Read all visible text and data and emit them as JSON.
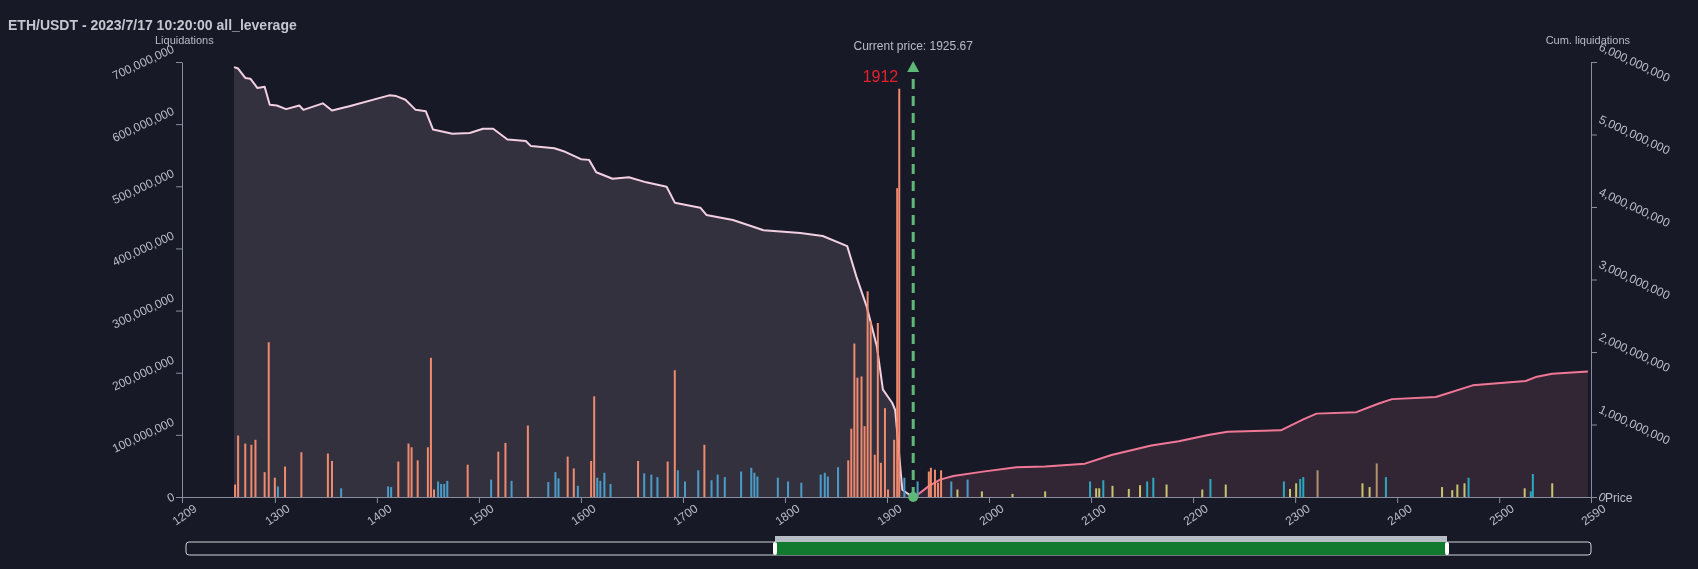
{
  "chart_data": {
    "type": "bar",
    "title": "ETH/USDT - 2023/7/17 10:20:00 all_leverage",
    "xlabel": "Price",
    "ylabel": "Liquidations",
    "y2label": "Cum. liquidations",
    "xlim": [
      1209,
      2590
    ],
    "xticks": [
      1209,
      1300,
      1400,
      1500,
      1600,
      1700,
      1800,
      1900,
      2000,
      2100,
      2200,
      2300,
      2400,
      2500,
      2590
    ],
    "ylim": [
      0,
      700000000
    ],
    "yticks": [
      0,
      {
        "value": 100000000,
        "label": "100,000,000"
      },
      {
        "value": 200000000,
        "label": "200,000,000"
      },
      {
        "value": 300000000,
        "label": "300,000,000"
      },
      {
        "value": 400000000,
        "label": "400,000,000"
      },
      {
        "value": 500000000,
        "label": "500,000,000"
      },
      {
        "value": 600000000,
        "label": "600,000,000"
      },
      {
        "value": 700000000,
        "label": "700,000,000"
      }
    ],
    "y2lim": [
      0,
      6000000000
    ],
    "y2ticks": [
      0,
      {
        "value": 1000000000,
        "label": "1,000,000,000"
      },
      {
        "value": 2000000000,
        "label": "2,000,000,000"
      },
      {
        "value": 3000000000,
        "label": "3,000,000,000"
      },
      {
        "value": 4000000000,
        "label": "4,000,000,000"
      },
      {
        "value": 5000000000,
        "label": "5,000,000,000"
      },
      {
        "value": 6000000000,
        "label": "6,000,000,000"
      }
    ],
    "grid": false,
    "series": [
      {
        "x": [
          1261,
          1264,
          1271,
          1277,
          1281,
          1290,
          1294,
          1300,
          1303,
          1310,
          1326,
          1352,
          1356,
          1365,
          1411,
          1414,
          1421,
          1431,
          1434,
          1440,
          1450,
          1453,
          1456,
          1460,
          1463,
          1466,
          1469,
          1489,
          1512,
          1519,
          1526,
          1532,
          1548,
          1568,
          1575,
          1578,
          1587,
          1593,
          1597,
          1610,
          1613,
          1616,
          1619,
          1623,
          1629,
          1656,
          1662,
          1669,
          1675,
          1685,
          1692,
          1695,
          1702,
          1715,
          1721,
          1728,
          1734,
          1741,
          1757,
          1767,
          1770,
          1773,
          1793,
          1803,
          1816,
          1835,
          1839,
          1842,
          1852,
          1862,
          1865,
          1868,
          1871,
          1875,
          1878,
          1881,
          1884,
          1888,
          1891,
          1894,
          1898,
          1901,
          1907,
          1910,
          1912,
          1917,
          1930,
          1941,
          1943,
          1947,
          1950,
          1953,
          1963,
          1969,
          1979,
          1993,
          2023,
          2055,
          2099,
          2105,
          2108,
          2112,
          2121,
          2137,
          2148,
          2155,
          2161,
          2174,
          2209,
          2217,
          2232,
          2289,
          2295,
          2301,
          2305,
          2308,
          2322,
          2366,
          2373,
          2380,
          2389,
          2444,
          2454,
          2459,
          2466,
          2470,
          2525,
          2531,
          2533,
          2552
        ],
        "values": [
          20000000,
          99000000,
          86000000,
          84000000,
          92000000,
          40000000,
          249000000,
          31000000,
          17000000,
          49000000,
          72000000,
          70000000,
          58000000,
          14000000,
          17000000,
          16000000,
          57000000,
          86000000,
          80000000,
          59000000,
          80000000,
          224000000,
          12000000,
          25000000,
          21000000,
          21000000,
          26000000,
          52000000,
          28000000,
          73000000,
          87000000,
          26000000,
          115000000,
          24000000,
          40000000,
          30000000,
          65000000,
          46000000,
          18000000,
          58000000,
          162000000,
          31000000,
          26000000,
          39000000,
          21000000,
          58000000,
          38000000,
          36000000,
          32000000,
          57000000,
          204000000,
          43000000,
          25000000,
          43000000,
          84000000,
          27000000,
          36000000,
          32000000,
          41000000,
          47000000,
          39000000,
          33000000,
          31000000,
          25000000,
          23000000,
          36000000,
          39000000,
          33000000,
          48000000,
          59000000,
          110000000,
          247000000,
          192000000,
          194000000,
          114000000,
          331000000,
          283000000,
          68000000,
          280000000,
          55000000,
          143000000,
          12000000,
          92000000,
          497000000,
          657000000,
          31000000,
          25000000,
          41000000,
          47000000,
          44000000,
          23000000,
          43000000,
          25000000,
          12000000,
          28000000,
          9000000,
          5000000,
          9000000,
          25000000,
          14000000,
          14000000,
          27000000,
          18000000,
          13000000,
          19000000,
          25000000,
          31000000,
          20000000,
          12000000,
          29000000,
          20000000,
          25000000,
          13000000,
          22000000,
          29000000,
          32000000,
          43000000,
          22000000,
          16000000,
          54000000,
          32000000,
          16000000,
          11000000,
          20000000,
          22000000,
          31000000,
          14000000,
          9000000,
          37000000,
          22000000
        ],
        "colors": [
          "#f08a6e",
          "#f08a6e",
          "#f08a6e",
          "#f08a6e",
          "#f08a6e",
          "#f08a6e",
          "#f08a6e",
          "#f08a6e",
          "#4a9cc8",
          "#f08a6e",
          "#f08a6e",
          "#f08a6e",
          "#f08a6e",
          "#4a9cc8",
          "#4a9cc8",
          "#4a9cc8",
          "#f08a6e",
          "#f08a6e",
          "#f08a6e",
          "#f08a6e",
          "#f08a6e",
          "#f08a6e",
          "#f08a6e",
          "#4a9cc8",
          "#4a9cc8",
          "#4a9cc8",
          "#4a9cc8",
          "#f08a6e",
          "#4a9cc8",
          "#f08a6e",
          "#f08a6e",
          "#4a9cc8",
          "#f08a6e",
          "#4a9cc8",
          "#4a9cc8",
          "#4a9cc8",
          "#f08a6e",
          "#f08a6e",
          "#4a9cc8",
          "#f08a6e",
          "#f08a6e",
          "#4a9cc8",
          "#4a9cc8",
          "#4a9cc8",
          "#4a9cc8",
          "#f08a6e",
          "#4a9cc8",
          "#4a9cc8",
          "#4a9cc8",
          "#f08a6e",
          "#f08a6e",
          "#4a9cc8",
          "#4a9cc8",
          "#4a9cc8",
          "#f08a6e",
          "#4a9cc8",
          "#4a9cc8",
          "#4a9cc8",
          "#4a9cc8",
          "#4a9cc8",
          "#4a9cc8",
          "#4a9cc8",
          "#4a9cc8",
          "#4a9cc8",
          "#4a9cc8",
          "#4a9cc8",
          "#4a9cc8",
          "#4a9cc8",
          "#4a9cc8",
          "#f08a6e",
          "#f08a6e",
          "#f08a6e",
          "#f08a6e",
          "#f08a6e",
          "#f08a6e",
          "#f08a6e",
          "#f08a6e",
          "#f08a6e",
          "#f08a6e",
          "#f08a6e",
          "#f08a6e",
          "#f08a6e",
          "#f08a6e",
          "#f08a6e",
          "#f08a6e",
          "#4a9cc8",
          "#4a9cc8",
          "#f08a6e",
          "#f08a6e",
          "#f08a6e",
          "#f08a6e",
          "#f08a6e",
          "#4a9cc8",
          "#c8c46e",
          "#4a9cc8",
          "#c8c46e",
          "#c8c46e",
          "#c8c46e",
          "#2aa8c0",
          "#c8c46e",
          "#c8c46e",
          "#2aa8c0",
          "#c8c46e",
          "#c8c46e",
          "#c8c46e",
          "#2aa8c0",
          "#2aa8c0",
          "#c8c46e",
          "#c8c46e",
          "#2aa8c0",
          "#c8c46e",
          "#2aa8c0",
          "#c8c46e",
          "#c8c46e",
          "#2aa8c0",
          "#2aa8c0",
          "#b09070",
          "#c8c46e",
          "#c8c46e",
          "#b09070",
          "#2aa8c0",
          "#c8c46e",
          "#c8c46e",
          "#c8c46e",
          "#c8c46e",
          "#2aa8c0",
          "#c8c46e",
          "#2aa8c0",
          "#2aa8c0",
          "#c8c46e"
        ]
      },
      {
        "type": "area",
        "axis": "y2",
        "color": "#f3cfe2",
        "x": [
          1260,
          1264,
          1271,
          1276,
          1283,
          1290,
          1295,
          1302,
          1311,
          1324,
          1328,
          1347,
          1356,
          1373,
          1412,
          1419,
          1428,
          1438,
          1448,
          1455,
          1474,
          1491,
          1504,
          1514,
          1528,
          1546,
          1551,
          1574,
          1583,
          1600,
          1608,
          1615,
          1631,
          1647,
          1664,
          1684,
          1692,
          1717,
          1723,
          1749,
          1779,
          1815,
          1837,
          1861,
          1870,
          1880,
          1890,
          1896,
          1905,
          1908,
          1915,
          1924
        ],
        "values": [
          5930000000,
          5910000000,
          5780000000,
          5770000000,
          5640000000,
          5660000000,
          5410000000,
          5400000000,
          5350000000,
          5400000000,
          5340000000,
          5430000000,
          5330000000,
          5390000000,
          5540000000,
          5530000000,
          5480000000,
          5340000000,
          5320000000,
          5070000000,
          5010000000,
          5020000000,
          5080000000,
          5080000000,
          4930000000,
          4910000000,
          4840000000,
          4810000000,
          4770000000,
          4660000000,
          4650000000,
          4480000000,
          4390000000,
          4410000000,
          4340000000,
          4280000000,
          4060000000,
          3990000000,
          3890000000,
          3820000000,
          3680000000,
          3640000000,
          3600000000,
          3460000000,
          3040000000,
          2630000000,
          2080000000,
          1480000000,
          1300000000,
          1200000000,
          100000000,
          10000000
        ]
      },
      {
        "type": "area",
        "axis": "y2",
        "color": "#f07896",
        "x": [
          1928,
          1941,
          1952,
          1965,
          1994,
          2027,
          2055,
          2094,
          2120,
          2159,
          2186,
          2216,
          2234,
          2286,
          2308,
          2321,
          2360,
          2382,
          2395,
          2438,
          2474,
          2526,
          2537,
          2552,
          2587
        ],
        "values": [
          10000000,
          150000000,
          240000000,
          290000000,
          350000000,
          410000000,
          420000000,
          460000000,
          580000000,
          710000000,
          770000000,
          860000000,
          900000000,
          920000000,
          1070000000,
          1150000000,
          1170000000,
          1290000000,
          1350000000,
          1380000000,
          1540000000,
          1600000000,
          1660000000,
          1700000000,
          1730000000
        ]
      }
    ],
    "ref_lines": [
      {
        "axis": "x",
        "value": 1925.67,
        "label": "Current price: 1925.67",
        "color": "#5fb878",
        "line_style": "dashed"
      }
    ],
    "annotations": [
      {
        "text": "1912",
        "x": 1912,
        "y": 657000000
      }
    ]
  }
}
